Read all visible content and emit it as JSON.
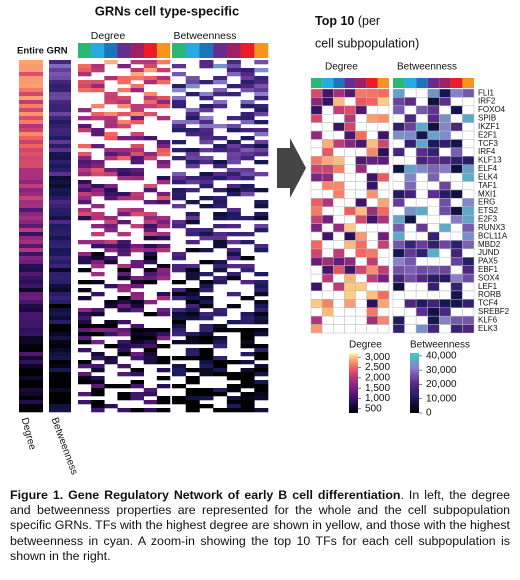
{
  "left_panel": {
    "title": "GRNs cell type-specific",
    "entire_label": "Entire GRN",
    "degree_label": "Degree",
    "betweenness_label": "Betweenness",
    "column_labels": [
      "Degree",
      "Betweenness"
    ]
  },
  "subpopulation_colors": [
    "#2bb673",
    "#27aae1",
    "#1c75bc",
    "#662d91",
    "#9e1f63",
    "#ed1c24",
    "#f7941d"
  ],
  "top10": {
    "title_bold": "Top 10",
    "title_rest": " (per",
    "title_line2": "cell subpopulation)",
    "degree_label": "Degree",
    "betweenness_label": "Betweenness",
    "tfs": [
      "FLI1",
      "IRF2",
      "FOXO4",
      "SPIB",
      "IKZF1",
      "E2F1",
      "TCF3",
      "IRF4",
      "KLF13",
      "ELF4",
      "ELK4",
      "TAF1",
      "MXI1",
      "ERG",
      "ETS2",
      "E2F3",
      "RUNX3",
      "BCL11A",
      "MBD2",
      "JUND",
      "PAX5",
      "EBF1",
      "SOX4",
      "LEF1",
      "RORB",
      "TCF4",
      "SREBF2",
      "KLF6",
      "ELK3"
    ]
  },
  "legend": {
    "degree": {
      "title": "Degree",
      "lim": [
        300,
        3200
      ],
      "ticks": [
        {
          "value": 3000,
          "label": "3,000"
        },
        {
          "value": 2500,
          "label": "2,500"
        },
        {
          "value": 2000,
          "label": "2,000"
        },
        {
          "value": 1500,
          "label": "1,500"
        },
        {
          "value": 1000,
          "label": "1,000"
        },
        500
      ]
    },
    "betweenness": {
      "title": "Betweenness",
      "lim": [
        0,
        42000
      ],
      "ticks": [
        {
          "value": 40000,
          "label": "40,000"
        },
        {
          "value": 30000,
          "label": "30,000"
        },
        {
          "value": 20000,
          "label": "20,000"
        },
        {
          "value": 10000,
          "label": "10,000"
        },
        0
      ]
    }
  },
  "caption": {
    "bold": "Figure 1. Gene Regulatory Network of early B cell differentiation",
    "text": ". In left, the degree and betweenness properties are represented for the whole and the cell subpopulation specific GRNs. TFs with the highest degree are shown in yellow, and those with the highest betweenness in cyan. A zoom-in showing the top 10 TFs for each cell subpopulation is shown in the right."
  }
}
